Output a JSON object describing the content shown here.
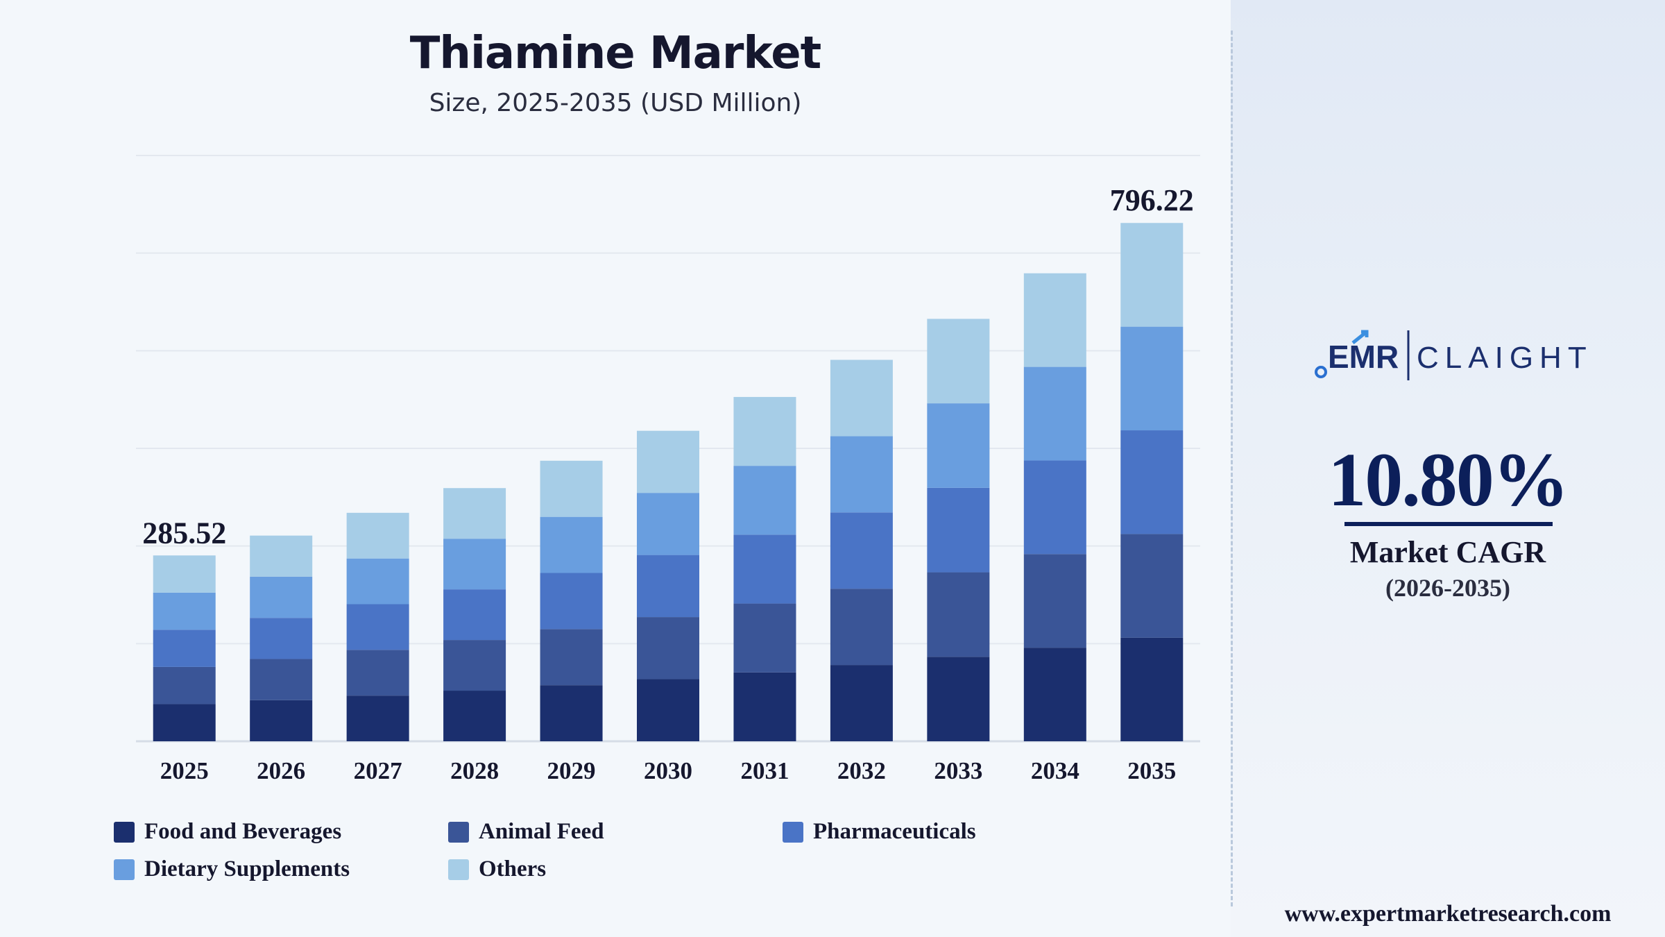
{
  "title": "Thiamine Market",
  "subtitle": "Size, 2025-2035 (USD Million)",
  "chart_data": {
    "type": "bar",
    "stacked": true,
    "title": "Thiamine Market",
    "subtitle": "Size, 2025-2035 (USD Million)",
    "categories": [
      "2025",
      "2026",
      "2027",
      "2028",
      "2029",
      "2030",
      "2031",
      "2032",
      "2033",
      "2034",
      "2035"
    ],
    "totals": [
      285.52,
      316,
      351,
      389,
      431,
      477,
      529,
      586,
      649,
      719,
      796.22
    ],
    "series": [
      {
        "name": "Food and Beverages",
        "color": "#1b2f6e",
        "values": [
          57.1,
          63.2,
          70.2,
          77.8,
          86.2,
          95.4,
          105.8,
          117.2,
          129.8,
          143.8,
          159.2
        ]
      },
      {
        "name": "Animal Feed",
        "color": "#3a5597",
        "values": [
          57.1,
          63.2,
          70.2,
          77.8,
          86.2,
          95.4,
          105.8,
          117.2,
          129.8,
          143.8,
          159.2
        ]
      },
      {
        "name": "Pharmaceuticals",
        "color": "#4a74c6",
        "values": [
          57.1,
          63.2,
          70.2,
          77.8,
          86.2,
          95.4,
          105.8,
          117.2,
          129.8,
          143.8,
          159.3
        ]
      },
      {
        "name": "Dietary Supplements",
        "color": "#699edf",
        "values": [
          57.1,
          63.2,
          70.2,
          77.8,
          86.2,
          95.4,
          105.8,
          117.2,
          129.8,
          143.8,
          159.3
        ]
      },
      {
        "name": "Others",
        "color": "#a6cde7",
        "values": [
          57.1,
          63.2,
          70.2,
          77.8,
          86.2,
          95.4,
          105.8,
          117.2,
          129.8,
          143.8,
          159.3
        ]
      }
    ],
    "data_labels": [
      {
        "category": "2025",
        "text": "285.52"
      },
      {
        "category": "2035",
        "text": "796.22"
      }
    ],
    "ylim": [
      0,
      900
    ],
    "grid": true,
    "legend_position": "bottom"
  },
  "legend": {
    "items": [
      {
        "label": "Food and Beverages",
        "color": "#1b2f6e"
      },
      {
        "label": "Animal Feed",
        "color": "#3a5597"
      },
      {
        "label": "Pharmaceuticals",
        "color": "#4a74c6"
      },
      {
        "label": "Dietary Supplements",
        "color": "#699edf"
      },
      {
        "label": "Others",
        "color": "#a6cde7"
      }
    ]
  },
  "sidebar": {
    "logo_left": "EMR",
    "logo_right": "CLAIGHT",
    "cagr_value": "10.80%",
    "cagr_label": "Market CAGR",
    "cagr_period": "(2026-2035)",
    "website": "www.expertmarketresearch.com"
  }
}
